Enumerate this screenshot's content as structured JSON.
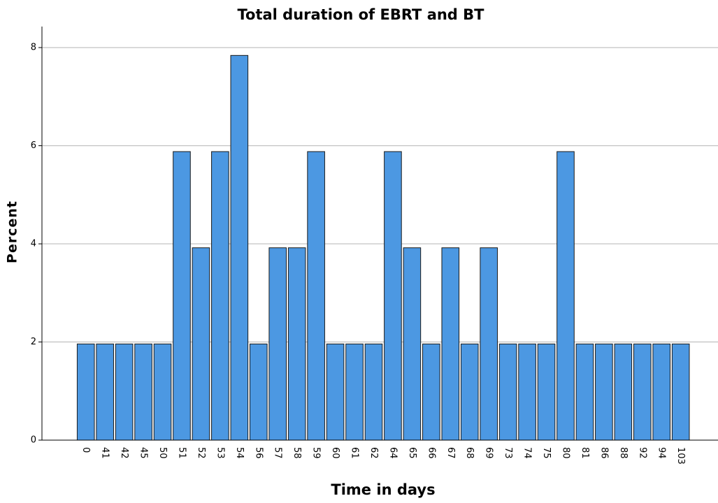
{
  "chart_data": {
    "type": "bar",
    "title": "Total duration of EBRT and BT",
    "x_label": "Time in days",
    "y_label": "Percent",
    "categories": [
      "0",
      "41",
      "42",
      "45",
      "50",
      "51",
      "52",
      "53",
      "54",
      "56",
      "57",
      "58",
      "59",
      "60",
      "61",
      "62",
      "64",
      "65",
      "66",
      "67",
      "68",
      "69",
      "73",
      "74",
      "75",
      "80",
      "81",
      "86",
      "88",
      "92",
      "94",
      "103"
    ],
    "values": [
      1.96,
      1.96,
      1.96,
      1.96,
      1.96,
      5.88,
      3.92,
      5.88,
      7.84,
      1.96,
      3.92,
      3.92,
      5.88,
      1.96,
      1.96,
      1.96,
      5.88,
      3.92,
      1.96,
      3.92,
      1.96,
      3.92,
      1.96,
      1.96,
      1.96,
      5.88,
      1.96,
      1.96,
      1.96,
      1.96,
      1.96,
      1.96
    ],
    "color": "#4c98e2",
    "ylim": [
      0,
      8.4
    ],
    "yticks": [
      0,
      2,
      4,
      6,
      8
    ],
    "grid": true
  }
}
